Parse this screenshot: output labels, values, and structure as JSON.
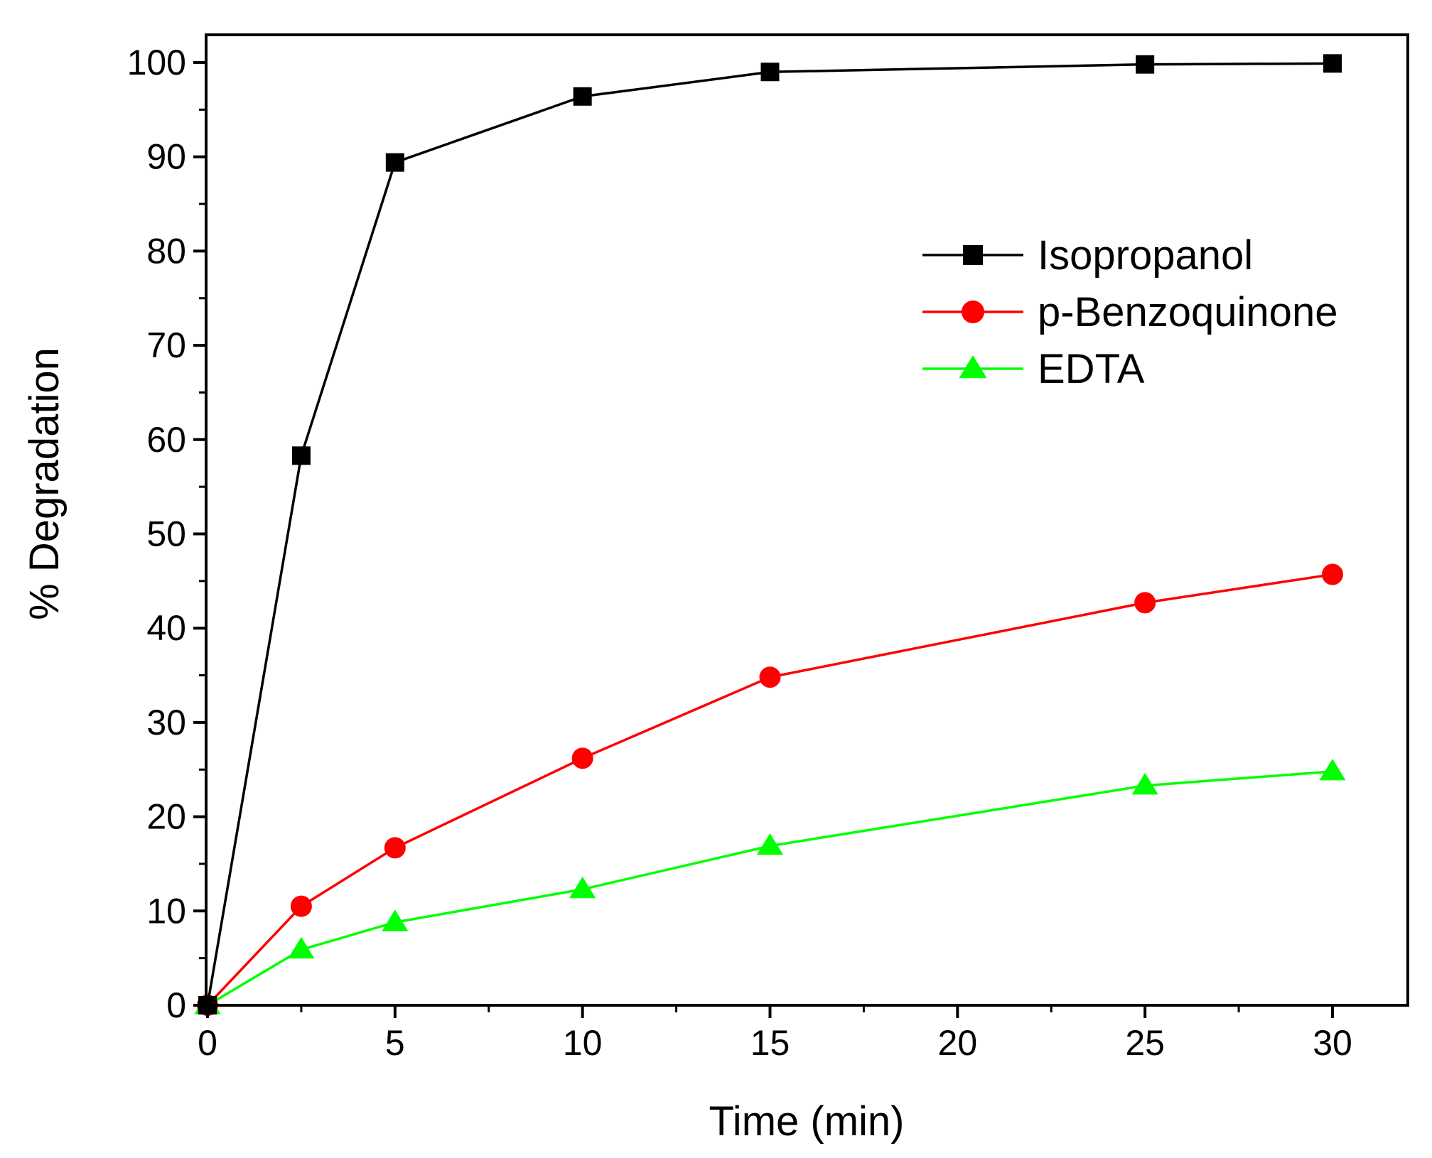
{
  "chart_data": {
    "type": "line",
    "title": "",
    "xlabel": "Time (min)",
    "ylabel": "% Degradation",
    "xlim": [
      0,
      32
    ],
    "ylim": [
      0,
      103
    ],
    "x_ticks": [
      0,
      5,
      10,
      15,
      20,
      25,
      30
    ],
    "x_tick_labels": [
      "0",
      "5",
      "10",
      "15",
      "20",
      "25",
      "30"
    ],
    "y_ticks": [
      0,
      10,
      20,
      30,
      40,
      50,
      60,
      70,
      80,
      90,
      100
    ],
    "y_tick_labels": [
      "0",
      "10",
      "20",
      "30",
      "40",
      "50",
      "60",
      "70",
      "80",
      "90",
      "100"
    ],
    "grid": false,
    "legend_position": "top-right",
    "x": [
      0,
      2.5,
      5,
      10,
      15,
      25,
      30
    ],
    "series": [
      {
        "name": "Isopropanol",
        "marker": "square",
        "color": "#000000",
        "values": [
          0,
          58.3,
          89.4,
          96.4,
          99.0,
          99.8,
          99.9
        ]
      },
      {
        "name": "p-Benzoquinone",
        "marker": "circle",
        "color": "#ff0000",
        "values": [
          0,
          10.5,
          16.7,
          26.2,
          34.8,
          42.7,
          45.7
        ]
      },
      {
        "name": "EDTA",
        "marker": "triangle",
        "color": "#00ff00",
        "values": [
          0,
          5.9,
          8.8,
          12.3,
          16.9,
          23.3,
          24.8
        ]
      }
    ]
  }
}
